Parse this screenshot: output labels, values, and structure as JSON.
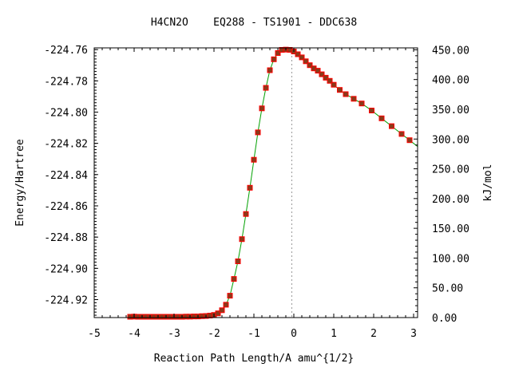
{
  "chart_data": {
    "type": "line",
    "title": "H4CN2O    EQ288 - TS1901 - DDC638",
    "xlabel": "Reaction Path Length/A amu^{1/2}",
    "ylabel": "Energy/Hartree",
    "y2label": "kJ/mol",
    "xlim": [
      -5,
      3.1
    ],
    "ylim": [
      -224.9315,
      -224.7589
    ],
    "y2lim": [
      0,
      453.2
    ],
    "xticks": [
      -5,
      -4,
      -3,
      -2,
      -1,
      0,
      1,
      2,
      3
    ],
    "xtick_labels": [
      "-5",
      "-4",
      "-3",
      "-2",
      "-1",
      "0",
      "1",
      "2",
      "3"
    ],
    "yticks": [
      -224.92,
      -224.9,
      -224.88,
      -224.86,
      -224.84,
      -224.82,
      -224.8,
      -224.78,
      -224.76
    ],
    "ytick_labels": [
      "-224.92",
      "-224.90",
      "-224.88",
      "-224.86",
      "-224.84",
      "-224.82",
      "-224.80",
      "-224.78",
      "-224.76"
    ],
    "y2ticks": [
      0,
      50,
      100,
      150,
      200,
      250,
      300,
      350,
      400,
      450
    ],
    "y2tick_labels": [
      "0.00",
      "50.00",
      "100.00",
      "150.00",
      "200.00",
      "250.00",
      "300.00",
      "350.00",
      "400.00",
      "450.00"
    ],
    "ts_line_x": -0.05,
    "grid": false,
    "colors": {
      "line": "#00a000",
      "marker_fill": "#8b3a1a",
      "marker_edge": "#ff0000",
      "ts_line": "#999999"
    },
    "series": [
      {
        "x": [
          -4.1,
          -4.0,
          -3.9,
          -3.8,
          -3.7,
          -3.6,
          -3.5,
          -3.4,
          -3.3,
          -3.2,
          -3.1,
          -3.0,
          -2.9,
          -2.8,
          -2.7,
          -2.6,
          -2.5,
          -2.4,
          -2.3,
          -2.2,
          -2.1,
          -2.0,
          -1.9,
          -1.8,
          -1.7,
          -1.6,
          -1.5,
          -1.4,
          -1.3,
          -1.2,
          -1.1,
          -1.0,
          -0.9,
          -0.8,
          -0.7,
          -0.6,
          -0.5,
          -0.4,
          -0.3,
          -0.2,
          -0.1,
          0.0,
          0.1,
          0.2,
          0.3,
          0.4,
          0.5,
          0.6,
          0.7,
          0.8,
          0.9,
          1.0,
          1.15,
          1.3,
          1.5,
          1.7,
          1.95,
          2.2,
          2.45,
          2.7,
          2.9
        ],
        "y": [
          -224.931,
          -224.9309,
          -224.931,
          -224.931,
          -224.931,
          -224.931,
          -224.931,
          -224.931,
          -224.931,
          -224.931,
          -224.931,
          -224.931,
          -224.931,
          -224.931,
          -224.9309,
          -224.9309,
          -224.9308,
          -224.9308,
          -224.9306,
          -224.9305,
          -224.9302,
          -224.9298,
          -224.9288,
          -224.9268,
          -224.9233,
          -224.9175,
          -224.9068,
          -224.8955,
          -224.8813,
          -224.8652,
          -224.8484,
          -224.8305,
          -224.813,
          -224.7976,
          -224.7845,
          -224.7732,
          -224.7662,
          -224.7622,
          -224.7602,
          -224.76,
          -224.7602,
          -224.7612,
          -224.763,
          -224.765,
          -224.7675,
          -224.77,
          -224.772,
          -224.7735,
          -224.7758,
          -224.778,
          -224.78,
          -224.7825,
          -224.7858,
          -224.7885,
          -224.7915,
          -224.7945,
          -224.799,
          -224.804,
          -224.809,
          -224.814,
          -224.818
        ]
      }
    ]
  }
}
